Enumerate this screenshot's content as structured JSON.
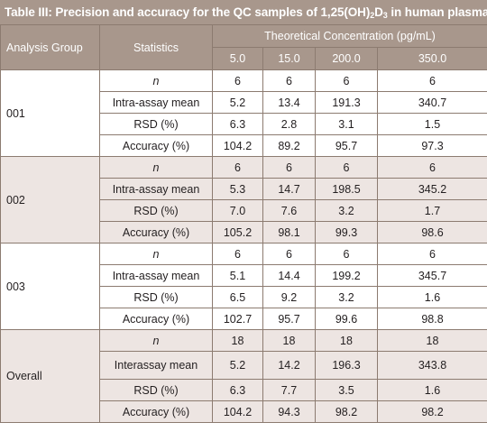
{
  "title": {
    "prefix": "Table III: Precision and accuracy for the QC samples of 1,25(OH)",
    "sub1": "2",
    "mid": "D",
    "sub2": "3",
    "suffix": " in human  plasma"
  },
  "headers": {
    "group": "Analysis Group",
    "statistics": "Statistics",
    "concentration": "Theoretical Concentration (pg/mL)",
    "levels": [
      "5.0",
      "15.0",
      "200.0",
      "350.0"
    ]
  },
  "groups": [
    {
      "name": "001",
      "rows": [
        {
          "label": "n",
          "values": [
            "6",
            "6",
            "6",
            "6"
          ]
        },
        {
          "label": "Intra-assay mean",
          "values": [
            "5.2",
            "13.4",
            "191.3",
            "340.7"
          ]
        },
        {
          "label": "RSD (%)",
          "values": [
            "6.3",
            "2.8",
            "3.1",
            "1.5"
          ]
        },
        {
          "label": "Accuracy (%)",
          "values": [
            "104.2",
            "89.2",
            "95.7",
            "97.3"
          ]
        }
      ]
    },
    {
      "name": "002",
      "rows": [
        {
          "label": "n",
          "values": [
            "6",
            "6",
            "6",
            "6"
          ]
        },
        {
          "label": "Intra-assay mean",
          "values": [
            "5.3",
            "14.7",
            "198.5",
            "345.2"
          ]
        },
        {
          "label": "RSD (%)",
          "values": [
            "7.0",
            "7.6",
            "3.2",
            "1.7"
          ]
        },
        {
          "label": "Accuracy (%)",
          "values": [
            "105.2",
            "98.1",
            "99.3",
            "98.6"
          ]
        }
      ]
    },
    {
      "name": "003",
      "rows": [
        {
          "label": "n",
          "values": [
            "6",
            "6",
            "6",
            "6"
          ]
        },
        {
          "label": "Intra-assay mean",
          "values": [
            "5.1",
            "14.4",
            "199.2",
            "345.7"
          ]
        },
        {
          "label": "RSD (%)",
          "values": [
            "6.5",
            "9.2",
            "3.2",
            "1.6"
          ]
        },
        {
          "label": "Accuracy (%)",
          "values": [
            "102.7",
            "95.7",
            "99.6",
            "98.8"
          ]
        }
      ]
    },
    {
      "name": "Overall",
      "rows": [
        {
          "label": "n",
          "values": [
            "18",
            "18",
            "18",
            "18"
          ]
        },
        {
          "label": "Interassay mean",
          "values": [
            "5.2",
            "14.2",
            "196.3",
            "343.8"
          ]
        },
        {
          "label": "RSD (%)",
          "values": [
            "6.3",
            "7.7",
            "3.5",
            "1.6"
          ]
        },
        {
          "label": "Accuracy (%)",
          "values": [
            "104.2",
            "94.3",
            "98.2",
            "98.2"
          ]
        }
      ]
    }
  ],
  "colors": {
    "header_bg": "#a8978c",
    "shaded_bg": "#ede5e2",
    "border": "#8c7b70"
  }
}
